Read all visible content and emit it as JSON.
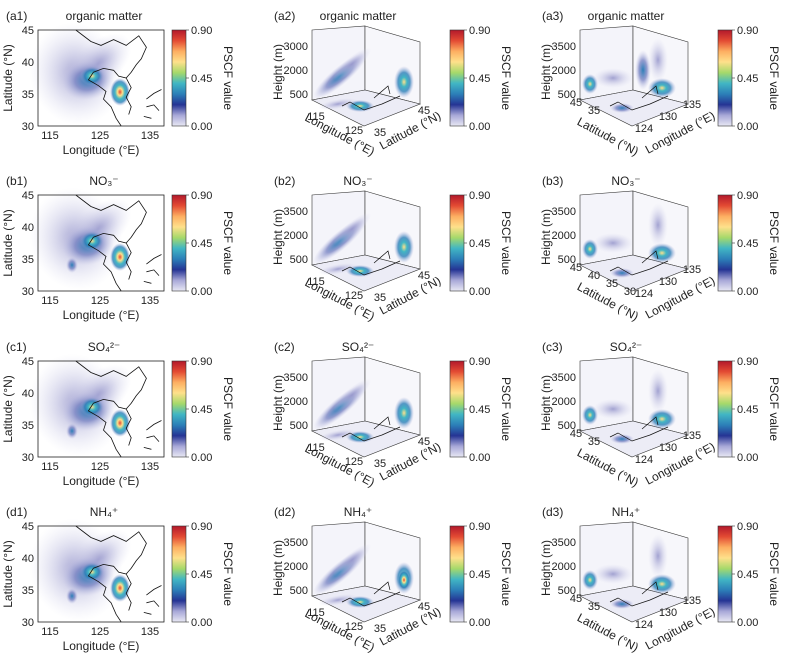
{
  "figure": {
    "rows": [
      {
        "species": "organic matter",
        "panels": [
          "(a1)",
          "(a2)",
          "(a3)"
        ]
      },
      {
        "species": "NO₃⁻",
        "panels": [
          "(b1)",
          "(b2)",
          "(b3)"
        ]
      },
      {
        "species": "SO₄²⁻",
        "panels": [
          "(c1)",
          "(c2)",
          "(c3)"
        ]
      },
      {
        "species": "NH₄⁺",
        "panels": [
          "(d1)",
          "(d2)",
          "(d3)"
        ]
      }
    ],
    "colorbar": {
      "label": "PSCF value",
      "ticks": [
        "0.90",
        "0.45",
        "0.00"
      ],
      "colors": [
        "#b2182b",
        "#e34a33",
        "#fdae61",
        "#fee08b",
        "#a6d96a",
        "#41b6c4",
        "#2c7fb8",
        "#253494",
        "#a8a8d8",
        "#e8e8f4"
      ]
    },
    "axes_2d": {
      "xlabel": "Longitude (°E)",
      "ylabel": "Latitude (°N)",
      "xticks": [
        "115",
        "125",
        "135"
      ],
      "yticks": [
        "45",
        "40",
        "35",
        "30"
      ]
    },
    "axes_3d_mid": {
      "zlabel": "Height (m)",
      "xlabel": "Longitude (°E)",
      "ylabel": "Latitude (°N)",
      "zticks_row1": [
        "3000",
        "2000",
        "500"
      ],
      "zticks": [
        "3500",
        "2000",
        "500"
      ],
      "xticks": [
        "115",
        "125"
      ],
      "yticks": [
        "35",
        "45"
      ]
    },
    "axes_3d_right": {
      "zlabel": "Height (m)",
      "xlabel": "Longitude (°E)",
      "ylabel": "Latitude (°N)",
      "zticks": [
        "3500",
        "2000",
        "500"
      ],
      "zticks_b3": [
        "3500",
        "2000",
        "500"
      ],
      "yticks": [
        "45",
        "35"
      ],
      "yticks_b3": [
        "45",
        "40",
        "35",
        "30"
      ],
      "xticks": [
        "124",
        "130",
        "135"
      ]
    }
  },
  "chart_data": [
    {
      "type": "heatmap",
      "description_text": "",
      "z_range": [
        0.0,
        0.9
      ],
      "colorbar_label": "PSCF value",
      "xlabel": "Longitude (°E)",
      "ylabel": "Latitude (°N)",
      "xlim": [
        110,
        135
      ],
      "ylim": [
        30,
        45
      ]
    }
  ]
}
